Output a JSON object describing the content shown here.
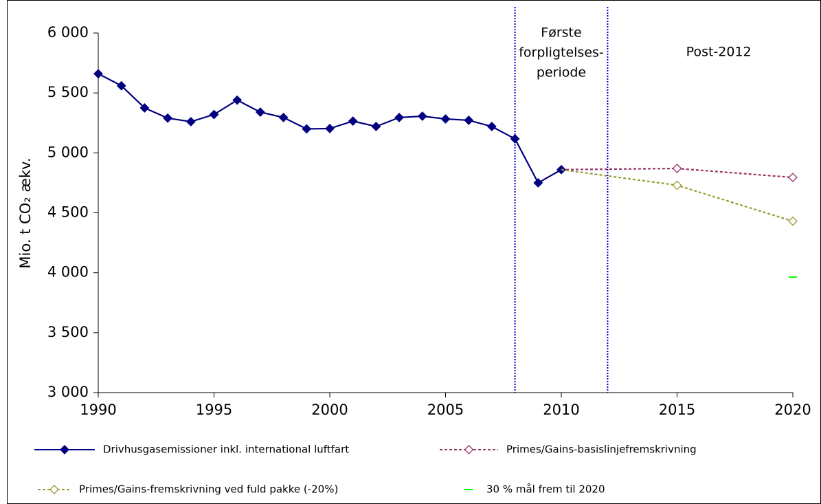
{
  "chart_data": {
    "type": "line",
    "y_label": "Mio. t CO₂ ækv.",
    "xlim": [
      1990,
      2020
    ],
    "xticks": [
      1990,
      1995,
      2000,
      2005,
      2010,
      2015,
      2020
    ],
    "ylim": [
      3000,
      6000
    ],
    "yticks": [
      {
        "value": 3000,
        "label": "3 000"
      },
      {
        "value": 3500,
        "label": "3 500"
      },
      {
        "value": 4000,
        "label": "4 000"
      },
      {
        "value": 4500,
        "label": "4 500"
      },
      {
        "value": 5000,
        "label": "5 000"
      },
      {
        "value": 5500,
        "label": "5 500"
      },
      {
        "value": 6000,
        "label": "6 000"
      }
    ],
    "vlines": [
      2008,
      2012
    ],
    "vline_color": "#0000cc",
    "annotations": [
      {
        "x": 2010,
        "lines": [
          "Første",
          "forpligtelses-",
          "periode"
        ]
      },
      {
        "x": 2016.8,
        "lines": [
          "Post-2012"
        ]
      }
    ],
    "series": [
      {
        "name": "Drivhusgasemissioner inkl. international luftfart",
        "color": "#000080",
        "line": "solid",
        "marker": "diamond-filled",
        "x": [
          1990,
          1991,
          1992,
          1993,
          1994,
          1995,
          1996,
          1997,
          1998,
          1999,
          2000,
          2001,
          2002,
          2003,
          2004,
          2005,
          2006,
          2007,
          2008,
          2009,
          2010
        ],
        "values": [
          5660,
          5560,
          5375,
          5290,
          5260,
          5320,
          5440,
          5340,
          5295,
          5200,
          5203,
          5265,
          5220,
          5295,
          5306,
          5283,
          5272,
          5220,
          5117,
          4750,
          4860
        ]
      },
      {
        "name": "Primes/Gains-basislinjefremskrivning",
        "color": "#993366",
        "line": "dashed",
        "marker": "diamond-open",
        "x": [
          2010,
          2015,
          2020
        ],
        "values": [
          4860,
          4870,
          4795
        ]
      },
      {
        "name": "Primes/Gains-fremskrivning ved fuld pakke (-20%)",
        "color": "#999933",
        "line": "dashed",
        "marker": "diamond-open",
        "x": [
          2010,
          2015,
          2020
        ],
        "values": [
          4860,
          4730,
          4430
        ]
      },
      {
        "name": "30 % mål frem til 2020",
        "color": "#00ff00",
        "line": "none",
        "marker": "dash",
        "x": [
          2020
        ],
        "values": [
          3964
        ]
      }
    ]
  }
}
